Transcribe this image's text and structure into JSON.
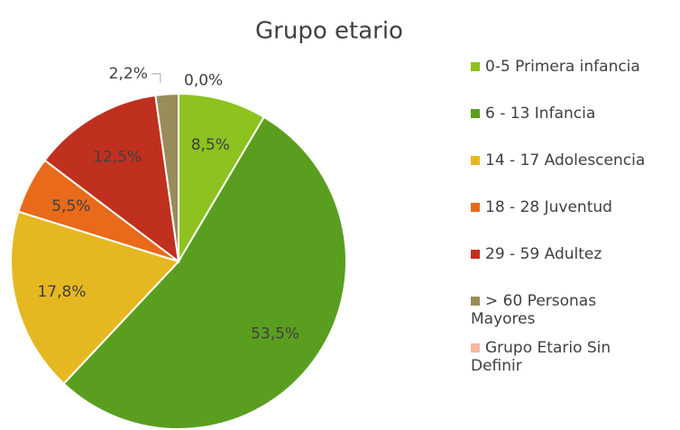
{
  "chart_data": {
    "type": "pie",
    "title": "Grupo etario",
    "categories": [
      "0-5 Primera infancia",
      "6 - 13 Infancia",
      "14 - 17 Adolescencia",
      "18 - 28 Juventud",
      "29 - 59 Adultez",
      "> 60 Personas Mayores",
      "Grupo Etario Sin Definir"
    ],
    "values": [
      8.5,
      53.5,
      17.8,
      5.5,
      12.5,
      2.2,
      0.0
    ],
    "value_labels": [
      "8,5%",
      "53,5%",
      "17,8%",
      "5,5%",
      "12,5%",
      "2,2%",
      "0,0%"
    ],
    "colors": [
      "#8dc21f",
      "#5a9e1f",
      "#e5b822",
      "#e86a1a",
      "#c0301e",
      "#9a8b5a",
      "#f4b8a0"
    ],
    "legend": "right"
  }
}
